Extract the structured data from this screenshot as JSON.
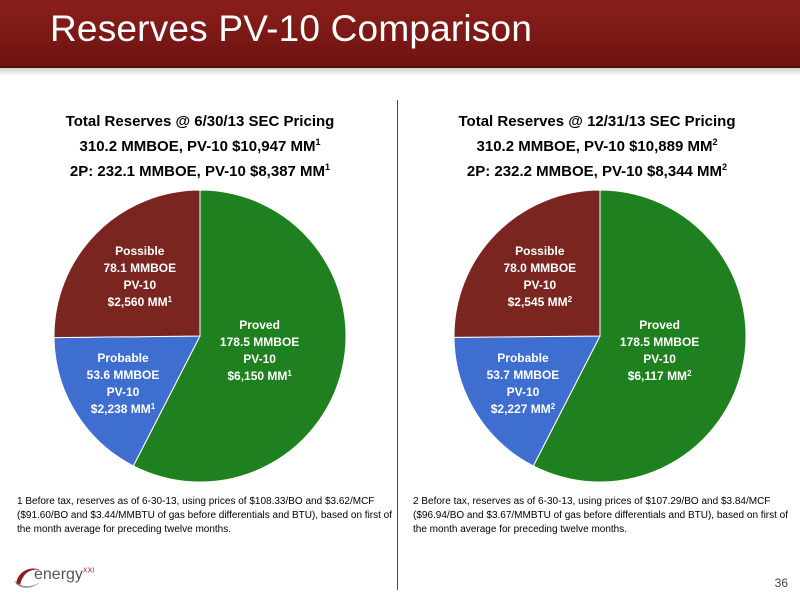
{
  "title": "Reserves PV-10 Comparison",
  "page_number": "36",
  "logo": {
    "name": "energy",
    "suffix": "XXI"
  },
  "colors": {
    "proved": "#1e801e",
    "probable": "#3e6fd0",
    "possible": "#7a2520",
    "title_bar": "#7a1a17"
  },
  "chart_data": [
    {
      "type": "pie",
      "title": [
        {
          "text": "Total Reserves @ 6/30/13 SEC Pricing",
          "sup": ""
        },
        {
          "text": "310.2 MMBOE, PV-10 $10,947 MM",
          "sup": "1"
        },
        {
          "text": "2P: 232.1 MMBOE, PV-10 $8,387 MM",
          "sup": "1"
        }
      ],
      "slices": [
        {
          "name": "Proved",
          "mmboe": 178.5,
          "lines": [
            "Proved",
            "178.5 MMBOE",
            "PV-10",
            "$6,150 MM"
          ],
          "sup": "1",
          "color": "#1e801e"
        },
        {
          "name": "Probable",
          "mmboe": 53.6,
          "lines": [
            "Probable",
            "53.6 MMBOE",
            "PV-10",
            "$2,238 MM"
          ],
          "sup": "1",
          "color": "#3e6fd0"
        },
        {
          "name": "Possible",
          "mmboe": 78.1,
          "lines": [
            "Possible",
            "78.1 MMBOE",
            "PV-10",
            "$2,560 MM"
          ],
          "sup": "1",
          "color": "#7a2520"
        }
      ],
      "footnote": "1 Before tax, reserves as of 6-30-13, using prices of $108.33/BO and $3.62/MCF ($91.60/BO and $3.44/MMBTU of gas before differentials and BTU), based on first of the month average for preceding twelve months."
    },
    {
      "type": "pie",
      "title": [
        {
          "text": "Total Reserves @ 12/31/13 SEC Pricing",
          "sup": ""
        },
        {
          "text": "310.2 MMBOE, PV-10 $10,889 MM",
          "sup": "2"
        },
        {
          "text": "2P: 232.2 MMBOE, PV-10 $8,344 MM",
          "sup": "2"
        }
      ],
      "slices": [
        {
          "name": "Proved",
          "mmboe": 178.5,
          "lines": [
            "Proved",
            "178.5 MMBOE",
            "PV-10",
            "$6,117 MM"
          ],
          "sup": "2",
          "color": "#1e801e"
        },
        {
          "name": "Probable",
          "mmboe": 53.7,
          "lines": [
            "Probable",
            "53.7 MMBOE",
            "PV-10",
            "$2,227 MM"
          ],
          "sup": "2",
          "color": "#3e6fd0"
        },
        {
          "name": "Possible",
          "mmboe": 78.0,
          "lines": [
            "Possible",
            "78.0 MMBOE",
            "PV-10",
            "$2,545 MM"
          ],
          "sup": "2",
          "color": "#7a2520"
        }
      ],
      "footnote": "2 Before tax, reserves as of 6-30-13, using prices of $107.29/BO and $3.84/MCF ($96.94/BO and $3.67/MMBTU of gas before differentials and BTU), based on first of the month average for preceding twelve months."
    }
  ]
}
